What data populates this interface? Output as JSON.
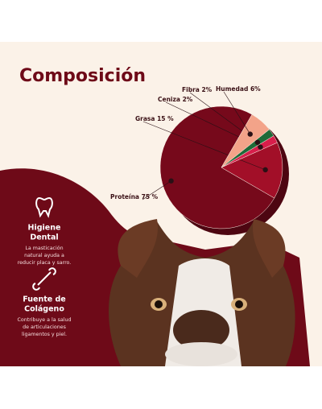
{
  "chart_data": {
    "type": "pie",
    "title": "Composición",
    "categories": [
      "Proteína",
      "Grasa",
      "Ceniza",
      "Fibra",
      "Humedad"
    ],
    "values": [
      75,
      15,
      2,
      2,
      6
    ],
    "value_labels": [
      "75 %",
      "15 %",
      "2%",
      "2%",
      "6%"
    ],
    "colors": [
      "#76091b",
      "#a20f28",
      "#d81e4b",
      "#1e6a38",
      "#f3a389"
    ]
  },
  "features": [
    {
      "title": [
        "Higiene",
        "Dental"
      ],
      "text": [
        "La masticación",
        "natural ayuda a",
        "reducir placa y sarro."
      ]
    },
    {
      "title": [
        "Fuente de",
        "Colágeno"
      ],
      "text": [
        "Contribuye a la salud",
        "de articulaciones",
        "ligamentos y piel."
      ]
    }
  ]
}
